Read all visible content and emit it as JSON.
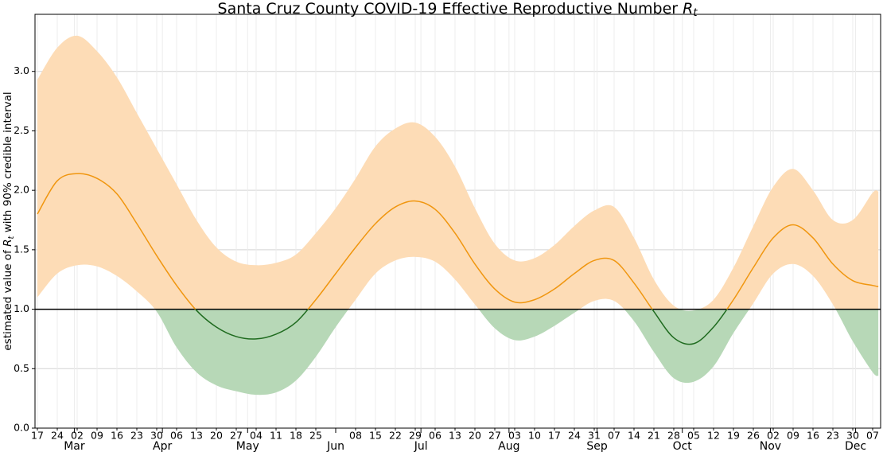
{
  "chart_data": {
    "type": "line",
    "title": {
      "text": "Santa Cruz County COVID-19 Effective Reproductive Number",
      "symbol": "R",
      "subscript": "t"
    },
    "ylabel": {
      "before": "estimated value of",
      "symbol": "R",
      "subscript": "t",
      "after": "with 90% credible interval"
    },
    "x": [
      48,
      55,
      62,
      69,
      76,
      83,
      90,
      97,
      104,
      111,
      118,
      125,
      132,
      139,
      146,
      153,
      160,
      167,
      174,
      181,
      188,
      195,
      202,
      209,
      216,
      223,
      230,
      237,
      244,
      251,
      258,
      265,
      272,
      279,
      286,
      293,
      300,
      307,
      314,
      321,
      328,
      335,
      342,
      344
    ],
    "values": [
      1.8,
      2.08,
      2.14,
      2.1,
      1.97,
      1.72,
      1.45,
      1.2,
      0.99,
      0.85,
      0.77,
      0.75,
      0.79,
      0.89,
      1.08,
      1.3,
      1.52,
      1.72,
      1.86,
      1.91,
      1.84,
      1.64,
      1.38,
      1.17,
      1.06,
      1.08,
      1.17,
      1.3,
      1.41,
      1.41,
      1.22,
      0.98,
      0.76,
      0.71,
      0.85,
      1.08,
      1.35,
      1.6,
      1.71,
      1.6,
      1.38,
      1.24,
      1.2,
      1.19
    ],
    "lower": [
      1.1,
      1.3,
      1.37,
      1.36,
      1.28,
      1.15,
      0.98,
      0.68,
      0.47,
      0.36,
      0.31,
      0.28,
      0.3,
      0.4,
      0.6,
      0.85,
      1.08,
      1.3,
      1.41,
      1.44,
      1.4,
      1.25,
      1.04,
      0.84,
      0.74,
      0.77,
      0.86,
      0.97,
      1.07,
      1.07,
      0.9,
      0.64,
      0.42,
      0.39,
      0.52,
      0.8,
      1.05,
      1.3,
      1.38,
      1.28,
      1.04,
      0.73,
      0.47,
      0.44
    ],
    "upper": [
      2.93,
      3.2,
      3.3,
      3.17,
      2.95,
      2.65,
      2.35,
      2.05,
      1.75,
      1.52,
      1.4,
      1.37,
      1.39,
      1.46,
      1.64,
      1.85,
      2.1,
      2.37,
      2.52,
      2.57,
      2.45,
      2.2,
      1.85,
      1.55,
      1.41,
      1.43,
      1.54,
      1.7,
      1.83,
      1.86,
      1.6,
      1.25,
      1.03,
      0.99,
      1.08,
      1.35,
      1.7,
      2.03,
      2.18,
      2.0,
      1.75,
      1.75,
      1.98,
      1.99
    ],
    "threshold": 1.0,
    "colors": {
      "line_above": "#f0960f",
      "line_below": "#1f6b1f",
      "band_above": "#fddcb6",
      "band_below": "#b7d8b7",
      "threshold": "#000000"
    },
    "xlim": [
      47.16,
      344.8
    ],
    "ylim": [
      0,
      3.48
    ],
    "yticks": [
      {
        "value": 0,
        "label": "0.0"
      },
      {
        "value": 0.5,
        "label": "0.5"
      },
      {
        "value": 1,
        "label": "1.0"
      },
      {
        "value": 1.5,
        "label": "1.5"
      },
      {
        "value": 2,
        "label": "2.0"
      },
      {
        "value": 2.5,
        "label": "2.5"
      },
      {
        "value": 3,
        "label": "3.0"
      }
    ],
    "xticks": [
      {
        "value": 48,
        "label": "17"
      },
      {
        "value": 55,
        "label": "24"
      },
      {
        "value": 62,
        "label": "02"
      },
      {
        "value": 69,
        "label": "09"
      },
      {
        "value": 76,
        "label": "16"
      },
      {
        "value": 83,
        "label": "23"
      },
      {
        "value": 90,
        "label": "30"
      },
      {
        "value": 97,
        "label": "06"
      },
      {
        "value": 104,
        "label": "13"
      },
      {
        "value": 111,
        "label": "20"
      },
      {
        "value": 118,
        "label": "27"
      },
      {
        "value": 125,
        "label": "04"
      },
      {
        "value": 132,
        "label": "11"
      },
      {
        "value": 139,
        "label": "18"
      },
      {
        "value": 146,
        "label": "25"
      },
      {
        "value": 160,
        "label": "08"
      },
      {
        "value": 167,
        "label": "15"
      },
      {
        "value": 174,
        "label": "22"
      },
      {
        "value": 181,
        "label": "29"
      },
      {
        "value": 188,
        "label": "06"
      },
      {
        "value": 195,
        "label": "13"
      },
      {
        "value": 202,
        "label": "20"
      },
      {
        "value": 209,
        "label": "27"
      },
      {
        "value": 216,
        "label": "03"
      },
      {
        "value": 223,
        "label": "10"
      },
      {
        "value": 230,
        "label": "17"
      },
      {
        "value": 237,
        "label": "24"
      },
      {
        "value": 244,
        "label": "31"
      },
      {
        "value": 251,
        "label": "07"
      },
      {
        "value": 258,
        "label": "14"
      },
      {
        "value": 265,
        "label": "21"
      },
      {
        "value": 272,
        "label": "28"
      },
      {
        "value": 279,
        "label": "05"
      },
      {
        "value": 286,
        "label": "12"
      },
      {
        "value": 293,
        "label": "19"
      },
      {
        "value": 300,
        "label": "26"
      },
      {
        "value": 307,
        "label": "02"
      },
      {
        "value": 314,
        "label": "09"
      },
      {
        "value": 321,
        "label": "16"
      },
      {
        "value": 328,
        "label": "23"
      },
      {
        "value": 335,
        "label": "30"
      },
      {
        "value": 342,
        "label": "07"
      }
    ],
    "month_ticks": [
      {
        "value": 61,
        "label": "Mar"
      },
      {
        "value": 92,
        "label": "Apr"
      },
      {
        "value": 122,
        "label": "May"
      },
      {
        "value": 153,
        "label": "Jun"
      },
      {
        "value": 183,
        "label": "Jul"
      },
      {
        "value": 214,
        "label": "Aug"
      },
      {
        "value": 245,
        "label": "Sep"
      },
      {
        "value": 275,
        "label": "Oct"
      },
      {
        "value": 306,
        "label": "Nov"
      },
      {
        "value": 336,
        "label": "Dec"
      }
    ],
    "grid": true
  }
}
